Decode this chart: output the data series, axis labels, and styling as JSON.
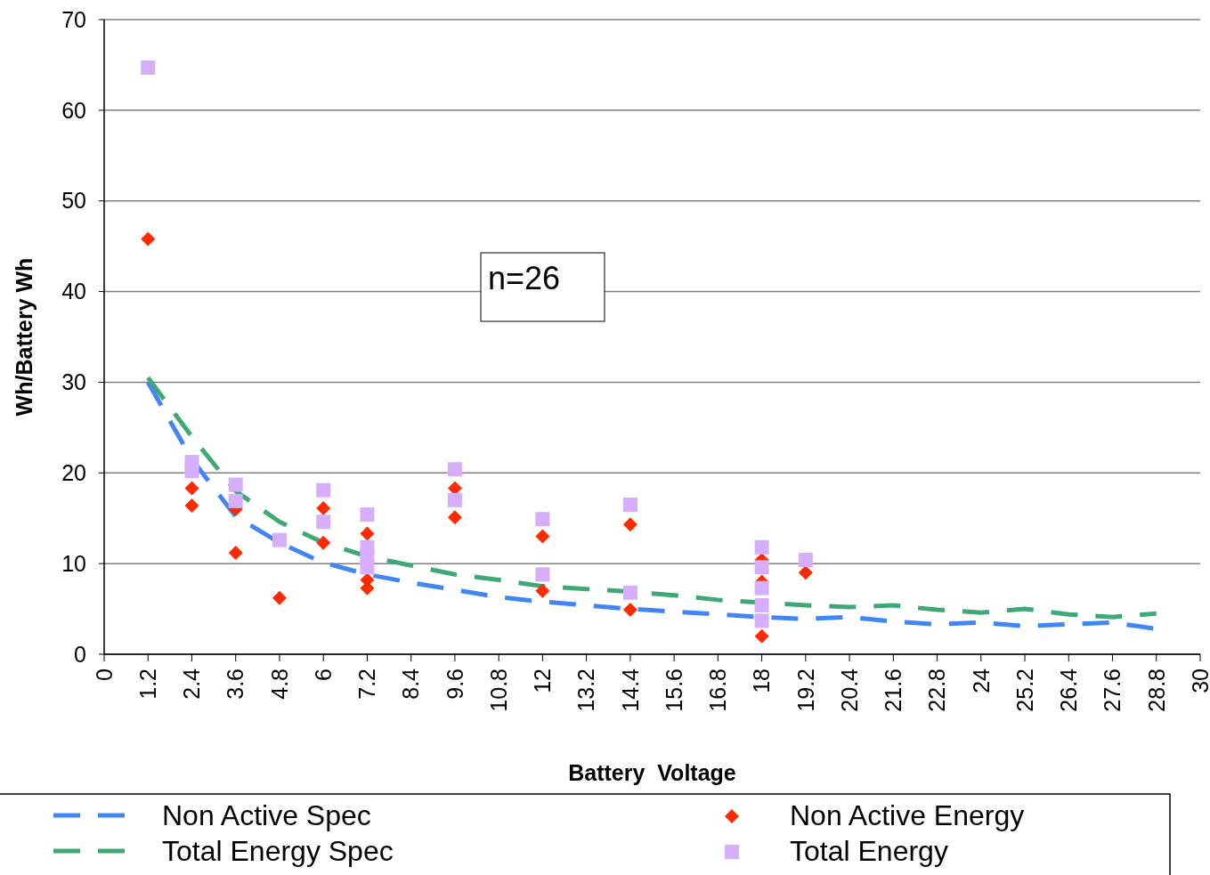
{
  "chart_data": {
    "type": "scatter",
    "xlabel": "Battery  Voltage",
    "ylabel": "Wh/Battery Wh",
    "annotations": [
      "n=26"
    ],
    "xlim": [
      0,
      30
    ],
    "xticks": [
      0,
      1.2,
      2.4,
      3.6,
      4.8,
      6,
      7.2,
      8.4,
      9.6,
      10.8,
      12,
      13.2,
      14.4,
      15.6,
      16.8,
      18,
      19.2,
      20.4,
      21.6,
      22.8,
      24,
      25.2,
      26.4,
      27.6,
      28.8,
      30
    ],
    "ylim": [
      0,
      70
    ],
    "yticks": [
      0,
      10,
      20,
      30,
      40,
      50,
      60,
      70
    ],
    "grid": "y",
    "legend": "bottom",
    "series": [
      {
        "name": "Non Active Spec",
        "type": "line",
        "line_style": "dashed",
        "marker": "none",
        "color": "#4285f4",
        "x": [
          1.2,
          2.4,
          3.6,
          4.8,
          6,
          7.2,
          8.4,
          9.6,
          10.8,
          12,
          13.2,
          14.4,
          15.6,
          16.8,
          18,
          19.2,
          20.4,
          21.6,
          22.8,
          24,
          25.2,
          26.4,
          27.6,
          28.8
        ],
        "values": [
          30,
          21.5,
          15.2,
          12.3,
          10.1,
          8.8,
          7.9,
          7.1,
          6.3,
          5.8,
          5.4,
          5,
          4.7,
          4.4,
          4.1,
          3.9,
          4.1,
          3.6,
          3.3,
          3.5,
          3.1,
          3.3,
          3.5,
          2.8
        ]
      },
      {
        "name": "Total Energy Spec",
        "type": "line",
        "line_style": "dashed",
        "marker": "none",
        "color": "#3fa877",
        "x": [
          1.2,
          2.4,
          3.6,
          4.8,
          6,
          7.2,
          8.4,
          9.6,
          10.8,
          12,
          13.2,
          14.4,
          15.6,
          16.8,
          18,
          19.2,
          20.4,
          21.6,
          22.8,
          24,
          25.2,
          26.4,
          27.6,
          28.8
        ],
        "values": [
          30.5,
          24,
          18,
          14.6,
          12.3,
          10.8,
          9.8,
          8.8,
          8.2,
          7.5,
          7.2,
          6.9,
          6.5,
          6,
          5.7,
          5.4,
          5.2,
          5.4,
          4.9,
          4.6,
          5,
          4.4,
          4.1,
          4.5
        ]
      },
      {
        "name": "Non Active Energy",
        "marker": "diamond",
        "color": "#ff2a00",
        "x": [
          1.2,
          2.4,
          2.4,
          3.6,
          3.6,
          4.8,
          6,
          6,
          7.2,
          7.2,
          7.2,
          9.6,
          9.6,
          12,
          12,
          14.4,
          14.4,
          18,
          18,
          18,
          19.2
        ],
        "values": [
          45.8,
          18.3,
          16.4,
          16,
          11.2,
          6.2,
          16.1,
          12.3,
          13.3,
          8.2,
          7.3,
          18.3,
          15.1,
          13,
          7,
          14.3,
          4.9,
          10.4,
          8,
          2,
          9
        ]
      },
      {
        "name": "Total Energy",
        "marker": "square",
        "color": "#d7aefc",
        "x": [
          1.2,
          2.4,
          2.4,
          3.6,
          3.6,
          4.8,
          6,
          6,
          7.2,
          7.2,
          7.2,
          7.2,
          9.6,
          9.6,
          12,
          12,
          14.4,
          14.4,
          18,
          18,
          18,
          18,
          18,
          19.2
        ],
        "values": [
          64.7,
          21.2,
          20.2,
          18.7,
          16.9,
          12.6,
          18.1,
          14.6,
          15.4,
          11.8,
          10.8,
          9.6,
          20.4,
          17,
          14.9,
          8.8,
          16.5,
          6.8,
          11.8,
          9.6,
          7.3,
          5.4,
          3.7,
          10.4
        ]
      }
    ]
  }
}
